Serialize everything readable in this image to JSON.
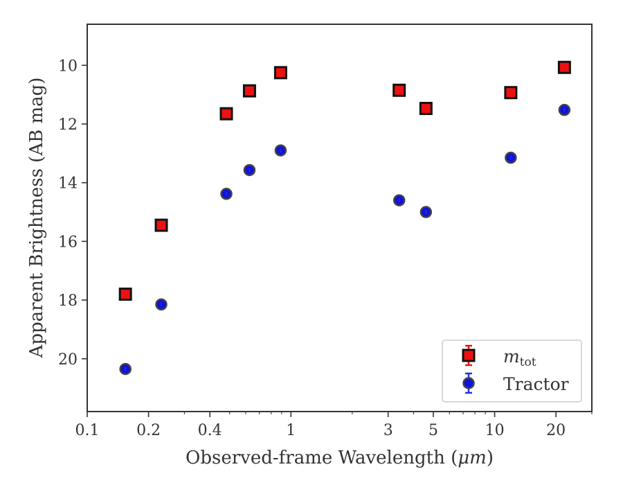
{
  "chart_data": {
    "type": "scatter",
    "xscale": "log",
    "yinverted": true,
    "xlim": [
      0.1,
      30
    ],
    "ylim": [
      21.8,
      8.6
    ],
    "xlabel_prefix": "Observed-frame Wavelength (",
    "xlabel_unit": "μm",
    "xlabel_suffix": ")",
    "ylabel": "Apparent Brightness (AB mag)",
    "xticks": [
      {
        "value": 0.1,
        "label": "0.1"
      },
      {
        "value": 0.2,
        "label": "0.2"
      },
      {
        "value": 0.4,
        "label": "0.4"
      },
      {
        "value": 1,
        "label": "1"
      },
      {
        "value": 3,
        "label": "3"
      },
      {
        "value": 5,
        "label": "5"
      },
      {
        "value": 10,
        "label": "10"
      },
      {
        "value": 20,
        "label": "20"
      }
    ],
    "yticks": [
      {
        "value": 10,
        "label": "10"
      },
      {
        "value": 12,
        "label": "12"
      },
      {
        "value": 14,
        "label": "14"
      },
      {
        "value": 16,
        "label": "16"
      },
      {
        "value": 18,
        "label": "18"
      },
      {
        "value": 20,
        "label": "20"
      }
    ],
    "legend_position": "lower-right",
    "series": [
      {
        "name_main": "m",
        "name_sub": "tot",
        "marker": "square",
        "color": "#ee1111",
        "edgecolor": "#111111",
        "errcolor": "#ee1111",
        "points": [
          {
            "x": 0.154,
            "y": 17.8
          },
          {
            "x": 0.231,
            "y": 15.45
          },
          {
            "x": 0.482,
            "y": 11.65
          },
          {
            "x": 0.626,
            "y": 10.87
          },
          {
            "x": 0.89,
            "y": 10.25
          },
          {
            "x": 3.4,
            "y": 10.85
          },
          {
            "x": 4.6,
            "y": 11.47
          },
          {
            "x": 12.0,
            "y": 10.93
          },
          {
            "x": 22.0,
            "y": 10.07
          }
        ]
      },
      {
        "name": "Tractor",
        "marker": "circle",
        "color": "#1111dd",
        "edgecolor": "#444444",
        "errcolor": "#2233dd",
        "points": [
          {
            "x": 0.154,
            "y": 20.35
          },
          {
            "x": 0.231,
            "y": 18.15
          },
          {
            "x": 0.482,
            "y": 14.38
          },
          {
            "x": 0.626,
            "y": 13.57
          },
          {
            "x": 0.89,
            "y": 12.9
          },
          {
            "x": 3.4,
            "y": 14.6
          },
          {
            "x": 4.6,
            "y": 15.0
          },
          {
            "x": 12.0,
            "y": 13.15
          },
          {
            "x": 22.0,
            "y": 11.52
          }
        ]
      }
    ]
  }
}
